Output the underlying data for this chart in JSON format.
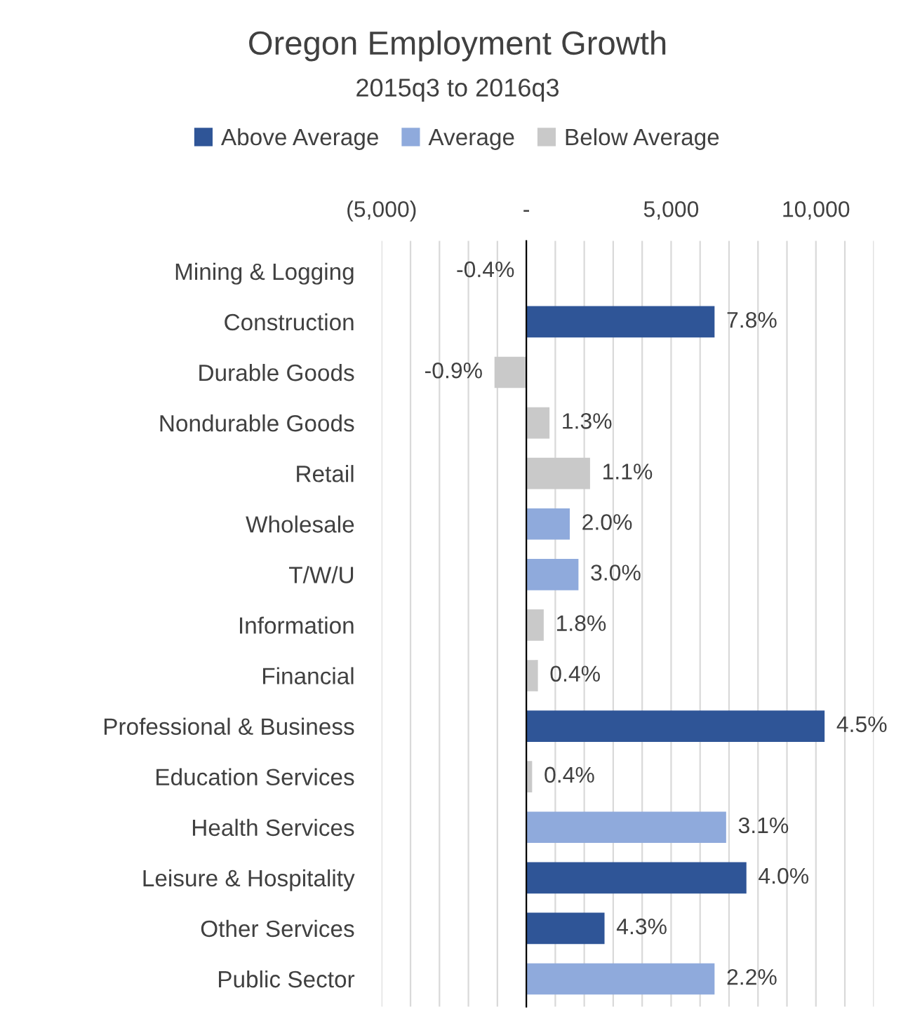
{
  "chart_data": {
    "type": "bar",
    "orientation": "horizontal",
    "stacked": true,
    "title": "Oregon Employment Growth",
    "subtitle": "2015q3 to 2016q3",
    "categories": [
      "Mining & Logging",
      "Construction",
      "Durable Goods",
      "Nondurable Goods",
      "Retail",
      "Wholesale",
      "T/W/U",
      "Information",
      "Financial",
      "Professional & Business",
      "Education Services",
      "Health Services",
      "Leisure & Hospitality",
      "Other Services",
      "Public Sector"
    ],
    "series": [
      {
        "name": "Above Average",
        "color": "#2f5597",
        "values": [
          null,
          6500,
          null,
          null,
          null,
          null,
          null,
          null,
          null,
          10300,
          null,
          null,
          7600,
          2700,
          null
        ]
      },
      {
        "name": "Average",
        "color": "#8faadc",
        "values": [
          null,
          null,
          null,
          null,
          null,
          1500,
          1800,
          null,
          null,
          null,
          null,
          6900,
          null,
          null,
          6500
        ]
      },
      {
        "name": "Below Average",
        "color": "#c9c9c9",
        "values": [
          null,
          null,
          -1100,
          800,
          2200,
          null,
          null,
          600,
          400,
          null,
          200,
          null,
          null,
          null,
          null
        ]
      }
    ],
    "annotations": [
      "-0.4%",
      {
        "text": "7.8%",
        "x": 6500,
        "y": "Construction"
      },
      {
        "text": "-0.9%",
        "x": -1100,
        "y": "Durable Goods"
      },
      {
        "text": "1.3%",
        "x": 800,
        "y": "Nondurable Goods"
      },
      {
        "text": "1.1%",
        "x": 2200,
        "y": "Retail"
      },
      {
        "text": "2.0%",
        "x": 1500,
        "y": "Wholesale"
      },
      {
        "text": "3.0%",
        "x": 1800,
        "y": "T/W/U"
      },
      {
        "text": "1.8%",
        "x": 600,
        "y": "Information"
      },
      {
        "text": "0.4%",
        "x": 400,
        "y": "Financial"
      },
      {
        "text": "4.5%",
        "x": 10300,
        "y": "Professional & Business"
      },
      {
        "text": "0.4%",
        "x": 200,
        "y": "Education Services"
      },
      {
        "text": "3.1%",
        "x": 6900,
        "y": "Health Services"
      },
      {
        "text": "4.0%",
        "x": 7600,
        "y": "Leisure & Hospitality"
      },
      {
        "text": "4.3%",
        "x": 2700,
        "y": "Other Services"
      },
      {
        "text": "2.2%",
        "x": 6500,
        "y": "Public Sector"
      }
    ],
    "xlim": [
      -5000,
      12000
    ],
    "xticks": [
      {
        "value": -5000,
        "label": "(5,000)"
      },
      {
        "value": -4000,
        "label": null
      },
      {
        "value": -3000,
        "label": null
      },
      {
        "value": -2000,
        "label": null
      },
      {
        "value": -1000,
        "label": null
      },
      {
        "value": 0,
        "label": "-"
      },
      {
        "value": 1000,
        "label": null
      },
      {
        "value": 2000,
        "label": null
      },
      {
        "value": 3000,
        "label": null
      },
      {
        "value": 4000,
        "label": null
      },
      {
        "value": 5000,
        "label": "5,000"
      },
      {
        "value": 6000,
        "label": null
      },
      {
        "value": 7000,
        "label": null
      },
      {
        "value": 8000,
        "label": null
      },
      {
        "value": 9000,
        "label": null
      },
      {
        "value": 10000,
        "label": "10,000"
      },
      {
        "value": 11000,
        "label": null
      },
      {
        "value": 12000,
        "label": null
      }
    ],
    "grid": "x",
    "legend": "top"
  }
}
